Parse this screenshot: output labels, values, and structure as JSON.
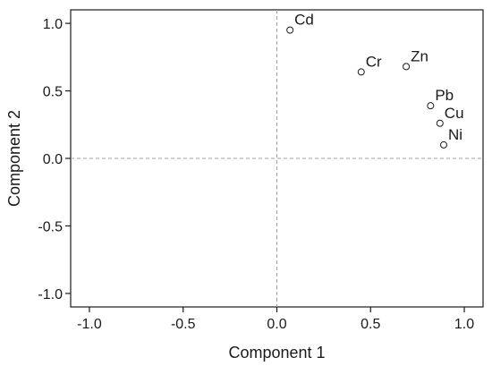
{
  "chart_data": {
    "type": "scatter",
    "title": "",
    "xlabel": "Component 1",
    "ylabel": "Component 2",
    "xlim": [
      -1.1,
      1.1
    ],
    "ylim": [
      -1.1,
      1.1
    ],
    "x_ticks": [
      -1.0,
      -0.5,
      0.0,
      0.5,
      1.0
    ],
    "y_ticks": [
      -1.0,
      -0.5,
      0.0,
      0.5,
      1.0
    ],
    "x_tick_labels": [
      "-1.0",
      "-0.5",
      "0.0",
      "0.5",
      "1.0"
    ],
    "y_tick_labels": [
      "-1.0",
      "-0.5",
      "0.0",
      "0.5",
      "1.0"
    ],
    "reference_lines": {
      "x": 0,
      "y": 0,
      "style": "dashed"
    },
    "grid": false,
    "points": [
      {
        "label": "Cd",
        "x": 0.07,
        "y": 0.95
      },
      {
        "label": "Cr",
        "x": 0.45,
        "y": 0.64
      },
      {
        "label": "Zn",
        "x": 0.69,
        "y": 0.68
      },
      {
        "label": "Pb",
        "x": 0.82,
        "y": 0.39
      },
      {
        "label": "Cu",
        "x": 0.87,
        "y": 0.26
      },
      {
        "label": "Ni",
        "x": 0.89,
        "y": 0.1
      }
    ],
    "marker": "open-circle",
    "colors": {
      "axis": "#1a1a1a",
      "reference": "#a0a0a0",
      "marker": "#1a1a1a"
    }
  }
}
